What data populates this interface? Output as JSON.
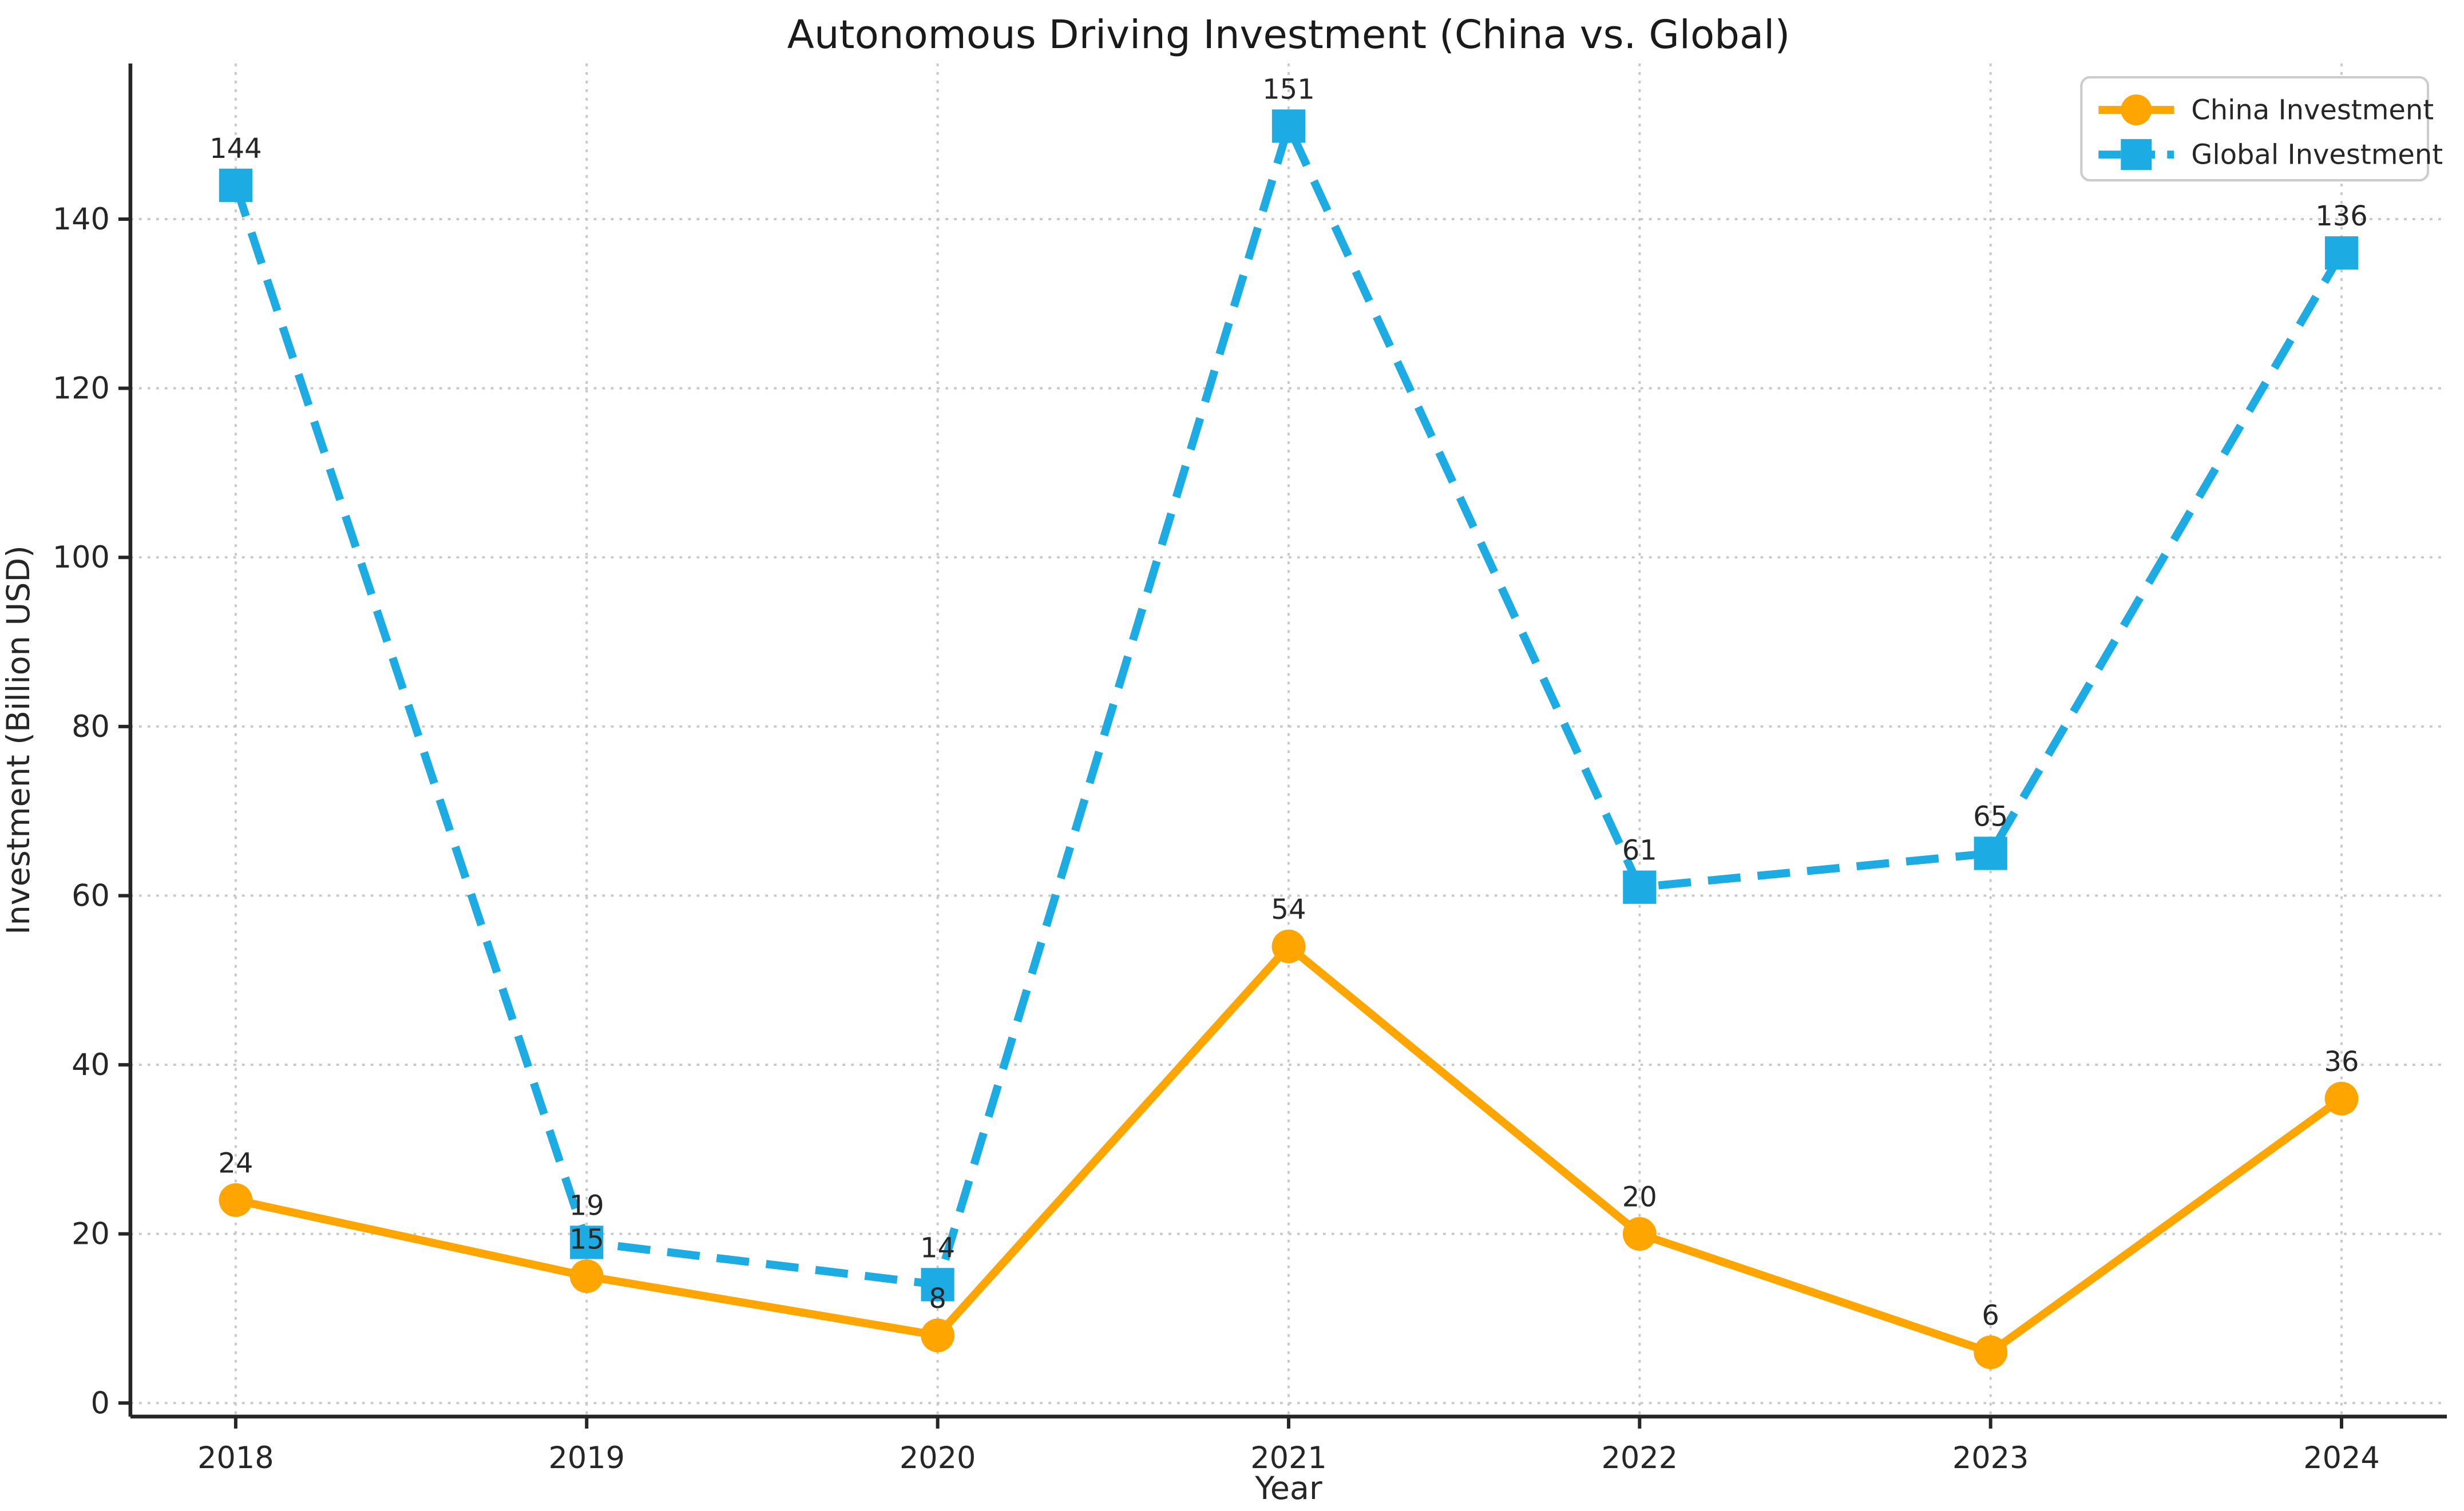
{
  "chart_data": {
    "type": "line",
    "title": "Autonomous Driving Investment (China vs. Global)",
    "xlabel": "Year",
    "ylabel": "Investment (Billion USD)",
    "categories": [
      "2018",
      "2019",
      "2020",
      "2021",
      "2022",
      "2023",
      "2024"
    ],
    "series": [
      {
        "name": "China Investment",
        "values": [
          24,
          15,
          8,
          54,
          20,
          6,
          36
        ],
        "color": "#FFA500",
        "line_style": "solid",
        "marker": "circle"
      },
      {
        "name": "Global Investment",
        "values": [
          144,
          19,
          14,
          151,
          61,
          65,
          136
        ],
        "color": "#1CABE2",
        "line_style": "dashed",
        "marker": "square"
      }
    ],
    "y_ticks": [
      0,
      20,
      40,
      60,
      80,
      100,
      120,
      140
    ],
    "xlim": [
      2017.7,
      2024.3
    ],
    "ylim": [
      -1.6,
      158.4
    ],
    "grid": true,
    "grid_style": "dotted",
    "legend_position": "upper right",
    "data_labels": true,
    "style": {
      "grid_color": "#c8c8c8",
      "spine_color": "#262626",
      "text_color": "#262626",
      "background": "#ffffff",
      "legend_border": "#cccccc"
    }
  }
}
